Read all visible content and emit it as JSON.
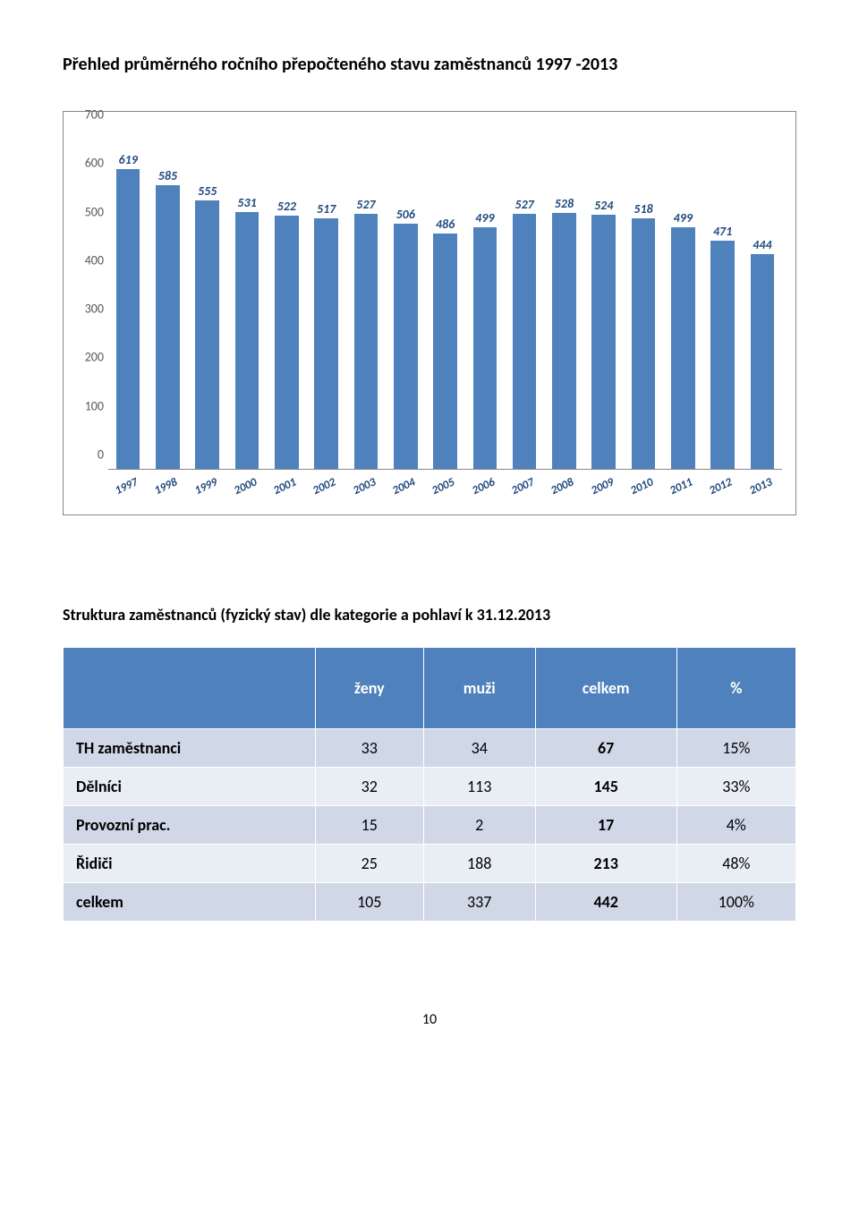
{
  "title": "Přehled průměrného ročního přepočteného stavu zaměstnanců 1997 -2013",
  "chart": {
    "type": "bar",
    "ymax": 700,
    "ytick_step": 100,
    "yticks": [
      0,
      100,
      200,
      300,
      400,
      500,
      600,
      700
    ],
    "bar_color": "#4f81bd",
    "value_color": "#1f497d",
    "axis_label_color": "#595959",
    "categories": [
      "1997",
      "1998",
      "1999",
      "2000",
      "2001",
      "2002",
      "2003",
      "2004",
      "2005",
      "2006",
      "2007",
      "2008",
      "2009",
      "2010",
      "2011",
      "2012",
      "2013"
    ],
    "values": [
      619,
      585,
      555,
      531,
      522,
      517,
      527,
      506,
      486,
      499,
      527,
      528,
      524,
      518,
      499,
      471,
      444
    ]
  },
  "subTitle": "Struktura zaměstnanců (fyzický stav) dle kategorie a pohlaví k 31.12.2013",
  "table": {
    "header_bg": "#4f81bd",
    "header_fg": "#ffffff",
    "row_odd_bg": "#d0d8e8",
    "row_even_bg": "#e9edf4",
    "columns": [
      "",
      "ženy",
      "muži",
      "celkem",
      "%"
    ],
    "rows": [
      {
        "label": "TH zaměstnanci",
        "zeny": "33",
        "muzi": "34",
        "celkem": "67",
        "pct": "15%"
      },
      {
        "label": "Dělníci",
        "zeny": "32",
        "muzi": "113",
        "celkem": "145",
        "pct": "33%"
      },
      {
        "label": "Provozní prac.",
        "zeny": "15",
        "muzi": "2",
        "celkem": "17",
        "pct": "4%"
      },
      {
        "label": "Řidiči",
        "zeny": "25",
        "muzi": "188",
        "celkem": "213",
        "pct": "48%"
      },
      {
        "label": "celkem",
        "zeny": "105",
        "muzi": "337",
        "celkem": "442",
        "pct": "100%"
      }
    ]
  },
  "pageNumber": "10"
}
